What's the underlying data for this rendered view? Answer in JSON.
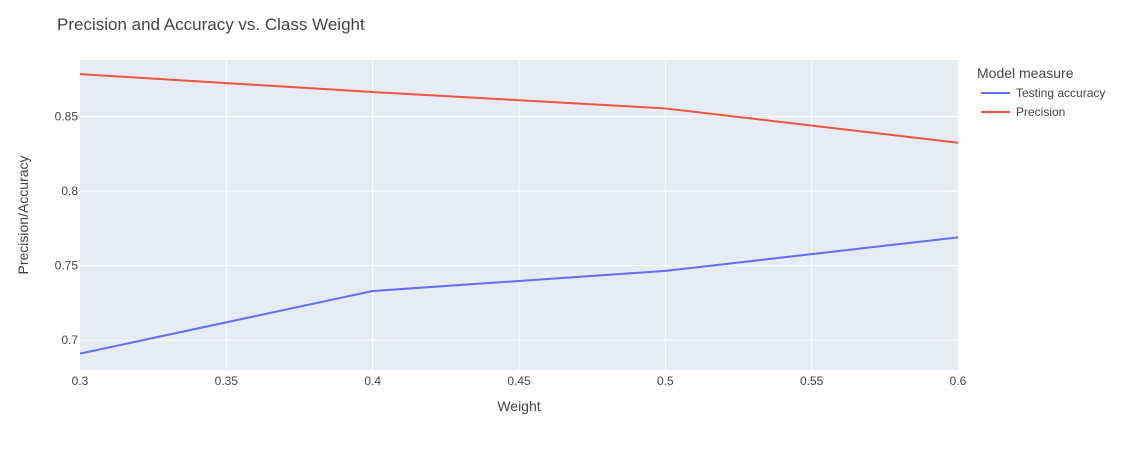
{
  "chart_data": {
    "type": "line",
    "title": "Precision and Accuracy vs. Class Weight",
    "xlabel": "Weight",
    "ylabel": "Precision/Accuracy",
    "x": [
      0.3,
      0.4,
      0.5,
      0.6
    ],
    "xlim": [
      0.3,
      0.6
    ],
    "ylim": [
      0.68,
      0.888
    ],
    "x_ticks": [
      "0.3",
      "0.35",
      "0.4",
      "0.45",
      "0.5",
      "0.55",
      "0.6"
    ],
    "y_ticks": [
      "0.7",
      "0.75",
      "0.8",
      "0.85"
    ],
    "grid": true,
    "legend_title": "Model measure",
    "legend_position": "top-right outside",
    "plot_background": "#e5ecf6",
    "series": [
      {
        "name": "Testing accuracy",
        "color": "#636efa",
        "values": [
          0.691,
          0.733,
          0.7465,
          0.769
        ]
      },
      {
        "name": "Precision",
        "color": "#ef553b",
        "values": [
          0.8785,
          0.8665,
          0.8555,
          0.8325
        ]
      }
    ]
  }
}
